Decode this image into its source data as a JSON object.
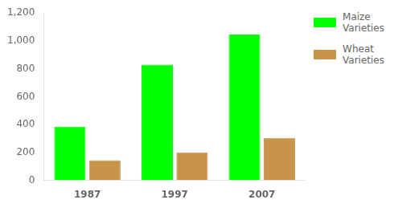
{
  "chart_data": {
    "type": "bar",
    "categories": [
      "1987",
      "1997",
      "2007"
    ],
    "series": [
      {
        "name": "Maize\nVarieties",
        "color": "#00ff00",
        "values": [
          385,
          830,
          1045
        ]
      },
      {
        "name": "Wheat\nVarieties",
        "color": "#c8944a",
        "values": [
          145,
          200,
          305
        ]
      }
    ],
    "ylim": [
      0,
      1200
    ],
    "yticks": [
      0,
      200,
      400,
      600,
      800,
      1000,
      1200
    ],
    "grid": false,
    "legend": "upper right"
  }
}
